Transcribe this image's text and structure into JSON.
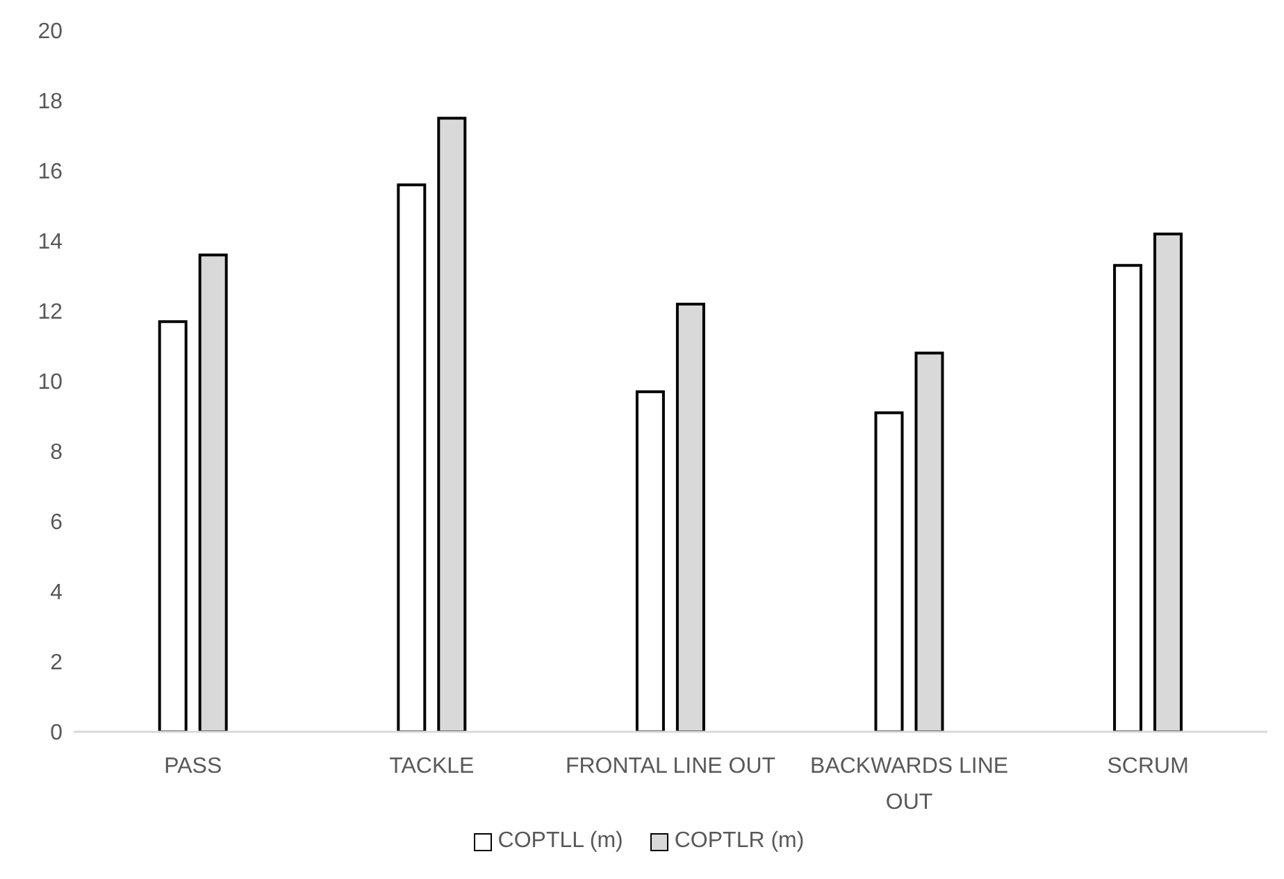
{
  "chart_data": {
    "type": "bar",
    "categories": [
      "PASS",
      "TACKLE",
      "FRONTAL LINE OUT",
      "BACKWARDS LINE OUT",
      "SCRUM"
    ],
    "series": [
      {
        "name": "COPTLL (m)",
        "color": "#ffffff",
        "values": [
          11.7,
          15.6,
          9.7,
          9.1,
          13.3
        ]
      },
      {
        "name": "COPTLR (m)",
        "color": "#d9d9d9",
        "values": [
          13.6,
          17.5,
          12.2,
          10.8,
          14.2
        ]
      }
    ],
    "ylim": [
      0,
      20
    ],
    "yticks": [
      0,
      2,
      4,
      6,
      8,
      10,
      12,
      14,
      16,
      18,
      20
    ],
    "grid": false,
    "legend": "bottom"
  }
}
